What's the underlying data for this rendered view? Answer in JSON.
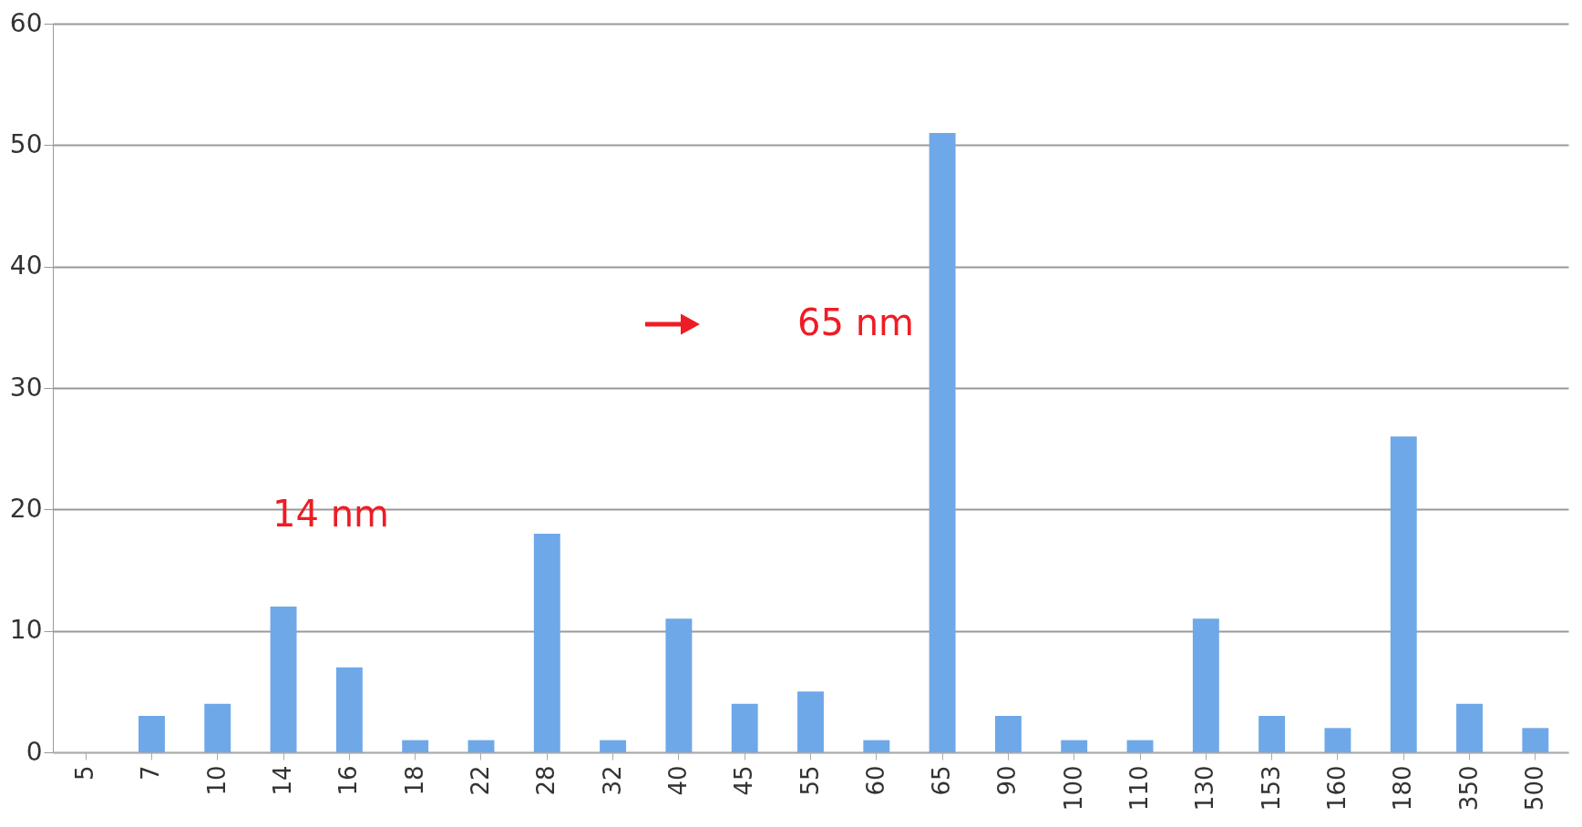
{
  "chart_data": {
    "type": "bar",
    "categories": [
      "5",
      "7",
      "10",
      "14",
      "16",
      "18",
      "22",
      "28",
      "32",
      "40",
      "45",
      "55",
      "60",
      "65",
      "90",
      "100",
      "110",
      "130",
      "153",
      "160",
      "180",
      "350",
      "500"
    ],
    "values": [
      0,
      3,
      4,
      12,
      7,
      1,
      1,
      18,
      1,
      11,
      4,
      5,
      1,
      51,
      3,
      1,
      1,
      11,
      3,
      2,
      26,
      4,
      2
    ],
    "color": "#6fa8e8",
    "ylim": [
      0,
      60
    ],
    "yticks": [
      0,
      10,
      20,
      30,
      40,
      50,
      60
    ],
    "grid": "y",
    "annotations": [
      "14 nm",
      "65 nm"
    ]
  }
}
